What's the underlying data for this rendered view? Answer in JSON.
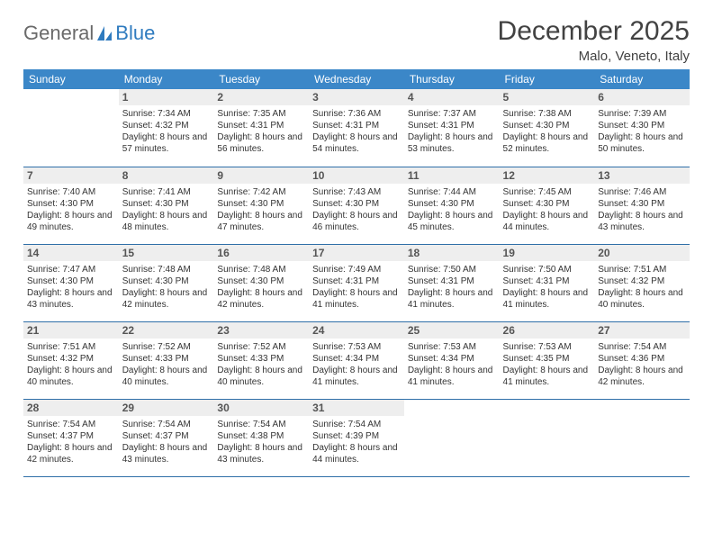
{
  "logo": {
    "text1": "General",
    "text2": "Blue"
  },
  "title": "December 2025",
  "location": "Malo, Veneto, Italy",
  "colors": {
    "header_bg": "#3b87c8",
    "header_text": "#ffffff",
    "daynum_bg": "#eeeeee",
    "border": "#2f6fa8",
    "logo_gray": "#6a6a6a",
    "logo_blue": "#2f7bbf"
  },
  "weekdays": [
    "Sunday",
    "Monday",
    "Tuesday",
    "Wednesday",
    "Thursday",
    "Friday",
    "Saturday"
  ],
  "weeks": [
    [
      {
        "n": "",
        "lines": []
      },
      {
        "n": "1",
        "lines": [
          "Sunrise: 7:34 AM",
          "Sunset: 4:32 PM",
          "Daylight: 8 hours and 57 minutes."
        ]
      },
      {
        "n": "2",
        "lines": [
          "Sunrise: 7:35 AM",
          "Sunset: 4:31 PM",
          "Daylight: 8 hours and 56 minutes."
        ]
      },
      {
        "n": "3",
        "lines": [
          "Sunrise: 7:36 AM",
          "Sunset: 4:31 PM",
          "Daylight: 8 hours and 54 minutes."
        ]
      },
      {
        "n": "4",
        "lines": [
          "Sunrise: 7:37 AM",
          "Sunset: 4:31 PM",
          "Daylight: 8 hours and 53 minutes."
        ]
      },
      {
        "n": "5",
        "lines": [
          "Sunrise: 7:38 AM",
          "Sunset: 4:30 PM",
          "Daylight: 8 hours and 52 minutes."
        ]
      },
      {
        "n": "6",
        "lines": [
          "Sunrise: 7:39 AM",
          "Sunset: 4:30 PM",
          "Daylight: 8 hours and 50 minutes."
        ]
      }
    ],
    [
      {
        "n": "7",
        "lines": [
          "Sunrise: 7:40 AM",
          "Sunset: 4:30 PM",
          "Daylight: 8 hours and 49 minutes."
        ]
      },
      {
        "n": "8",
        "lines": [
          "Sunrise: 7:41 AM",
          "Sunset: 4:30 PM",
          "Daylight: 8 hours and 48 minutes."
        ]
      },
      {
        "n": "9",
        "lines": [
          "Sunrise: 7:42 AM",
          "Sunset: 4:30 PM",
          "Daylight: 8 hours and 47 minutes."
        ]
      },
      {
        "n": "10",
        "lines": [
          "Sunrise: 7:43 AM",
          "Sunset: 4:30 PM",
          "Daylight: 8 hours and 46 minutes."
        ]
      },
      {
        "n": "11",
        "lines": [
          "Sunrise: 7:44 AM",
          "Sunset: 4:30 PM",
          "Daylight: 8 hours and 45 minutes."
        ]
      },
      {
        "n": "12",
        "lines": [
          "Sunrise: 7:45 AM",
          "Sunset: 4:30 PM",
          "Daylight: 8 hours and 44 minutes."
        ]
      },
      {
        "n": "13",
        "lines": [
          "Sunrise: 7:46 AM",
          "Sunset: 4:30 PM",
          "Daylight: 8 hours and 43 minutes."
        ]
      }
    ],
    [
      {
        "n": "14",
        "lines": [
          "Sunrise: 7:47 AM",
          "Sunset: 4:30 PM",
          "Daylight: 8 hours and 43 minutes."
        ]
      },
      {
        "n": "15",
        "lines": [
          "Sunrise: 7:48 AM",
          "Sunset: 4:30 PM",
          "Daylight: 8 hours and 42 minutes."
        ]
      },
      {
        "n": "16",
        "lines": [
          "Sunrise: 7:48 AM",
          "Sunset: 4:30 PM",
          "Daylight: 8 hours and 42 minutes."
        ]
      },
      {
        "n": "17",
        "lines": [
          "Sunrise: 7:49 AM",
          "Sunset: 4:31 PM",
          "Daylight: 8 hours and 41 minutes."
        ]
      },
      {
        "n": "18",
        "lines": [
          "Sunrise: 7:50 AM",
          "Sunset: 4:31 PM",
          "Daylight: 8 hours and 41 minutes."
        ]
      },
      {
        "n": "19",
        "lines": [
          "Sunrise: 7:50 AM",
          "Sunset: 4:31 PM",
          "Daylight: 8 hours and 41 minutes."
        ]
      },
      {
        "n": "20",
        "lines": [
          "Sunrise: 7:51 AM",
          "Sunset: 4:32 PM",
          "Daylight: 8 hours and 40 minutes."
        ]
      }
    ],
    [
      {
        "n": "21",
        "lines": [
          "Sunrise: 7:51 AM",
          "Sunset: 4:32 PM",
          "Daylight: 8 hours and 40 minutes."
        ]
      },
      {
        "n": "22",
        "lines": [
          "Sunrise: 7:52 AM",
          "Sunset: 4:33 PM",
          "Daylight: 8 hours and 40 minutes."
        ]
      },
      {
        "n": "23",
        "lines": [
          "Sunrise: 7:52 AM",
          "Sunset: 4:33 PM",
          "Daylight: 8 hours and 40 minutes."
        ]
      },
      {
        "n": "24",
        "lines": [
          "Sunrise: 7:53 AM",
          "Sunset: 4:34 PM",
          "Daylight: 8 hours and 41 minutes."
        ]
      },
      {
        "n": "25",
        "lines": [
          "Sunrise: 7:53 AM",
          "Sunset: 4:34 PM",
          "Daylight: 8 hours and 41 minutes."
        ]
      },
      {
        "n": "26",
        "lines": [
          "Sunrise: 7:53 AM",
          "Sunset: 4:35 PM",
          "Daylight: 8 hours and 41 minutes."
        ]
      },
      {
        "n": "27",
        "lines": [
          "Sunrise: 7:54 AM",
          "Sunset: 4:36 PM",
          "Daylight: 8 hours and 42 minutes."
        ]
      }
    ],
    [
      {
        "n": "28",
        "lines": [
          "Sunrise: 7:54 AM",
          "Sunset: 4:37 PM",
          "Daylight: 8 hours and 42 minutes."
        ]
      },
      {
        "n": "29",
        "lines": [
          "Sunrise: 7:54 AM",
          "Sunset: 4:37 PM",
          "Daylight: 8 hours and 43 minutes."
        ]
      },
      {
        "n": "30",
        "lines": [
          "Sunrise: 7:54 AM",
          "Sunset: 4:38 PM",
          "Daylight: 8 hours and 43 minutes."
        ]
      },
      {
        "n": "31",
        "lines": [
          "Sunrise: 7:54 AM",
          "Sunset: 4:39 PM",
          "Daylight: 8 hours and 44 minutes."
        ]
      },
      {
        "n": "",
        "lines": []
      },
      {
        "n": "",
        "lines": []
      },
      {
        "n": "",
        "lines": []
      }
    ]
  ]
}
